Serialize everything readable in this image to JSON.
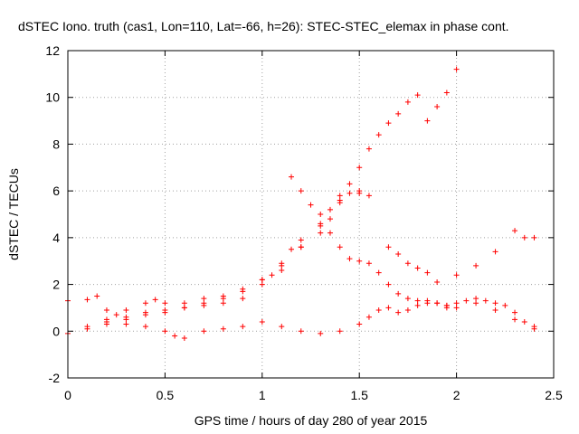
{
  "chart_data": {
    "type": "scatter",
    "title": "dSTEC Iono. truth (cas1, Lon=110, Lat=-66, h=26): STEC-STEC_elemax in phase cont.",
    "xlabel": "GPS time / hours of day 280 of year 2015",
    "ylabel": "dSTEC  / TECUs",
    "xlim": [
      0,
      2.5
    ],
    "ylim": [
      -2,
      12
    ],
    "xticks": [
      0,
      0.5,
      1,
      1.5,
      2,
      2.5
    ],
    "xtick_labels": [
      "0",
      "0.5",
      "1",
      "1.5",
      "2",
      "2.5"
    ],
    "yticks": [
      -2,
      0,
      2,
      4,
      6,
      8,
      10,
      12
    ],
    "ytick_labels": [
      "-2",
      "0",
      "2",
      "4",
      "6",
      "8",
      "10",
      "12"
    ],
    "grid": true,
    "marker": "+",
    "color": "#ff0000",
    "series": [
      {
        "x": [
          0,
          0.1,
          0.2,
          0.3,
          0.4,
          0.5,
          0.6,
          0.7,
          0.8,
          0.9,
          1.0,
          1.1,
          1.2,
          1.3,
          1.35,
          1.4,
          1.45,
          1.5,
          1.55,
          1.6,
          1.65,
          1.7,
          1.75,
          1.8,
          1.85,
          1.9,
          1.95,
          2.0
        ],
        "y": [
          -0.1,
          0.1,
          0.3,
          0.5,
          0.7,
          0.8,
          1.0,
          1.2,
          1.4,
          1.7,
          2.2,
          2.8,
          3.6,
          4.5,
          5.2,
          5.8,
          6.3,
          7.0,
          7.8,
          8.4,
          8.9,
          9.3,
          9.8,
          10.1,
          9.0,
          9.6,
          10.2,
          11.2
        ]
      },
      {
        "x": [
          0,
          0.1,
          0.15,
          0.2,
          0.25,
          0.3,
          0.4,
          0.5,
          0.6,
          0.7,
          0.8,
          0.9,
          1.0,
          1.1,
          1.2,
          1.3,
          1.4,
          1.5
        ],
        "y": [
          1.3,
          1.35,
          1.5,
          0.9,
          0.7,
          0.6,
          0.8,
          0.9,
          1.0,
          1.1,
          1.2,
          1.4,
          2.0,
          2.6,
          3.6,
          4.6,
          5.5,
          5.9
        ]
      },
      {
        "x": [
          0.1,
          0.2,
          0.3,
          0.4,
          0.45,
          0.5,
          0.6,
          0.7,
          0.8,
          0.9,
          1.0,
          1.05,
          1.1,
          1.15,
          1.2,
          1.3,
          1.35,
          1.4,
          1.45,
          1.5,
          1.55
        ],
        "y": [
          0.2,
          0.5,
          0.9,
          1.2,
          1.35,
          1.2,
          1.2,
          1.4,
          1.5,
          1.8,
          2.2,
          2.4,
          2.9,
          3.5,
          3.9,
          4.2,
          4.8,
          5.6,
          5.9,
          6.0,
          5.8
        ]
      },
      {
        "x": [
          0.2,
          0.3,
          0.4,
          0.5,
          0.55,
          0.6,
          0.7,
          0.8,
          0.9,
          1.0,
          1.1,
          1.2,
          1.3,
          1.4,
          1.5,
          1.55,
          1.6,
          1.65,
          1.7,
          1.75,
          1.8,
          1.85,
          1.9,
          1.95,
          2.0,
          2.05,
          2.1,
          2.15,
          2.2,
          2.25,
          2.3,
          2.35,
          2.4
        ],
        "y": [
          0.4,
          0.3,
          0.2,
          0.0,
          -0.2,
          -0.3,
          0.0,
          0.1,
          0.2,
          0.4,
          0.2,
          0.0,
          -0.1,
          0.0,
          0.3,
          0.6,
          0.9,
          1.0,
          0.8,
          0.9,
          1.1,
          1.3,
          1.2,
          1.1,
          1.2,
          1.3,
          1.4,
          1.3,
          1.2,
          1.1,
          0.8,
          0.4,
          0.1
        ]
      },
      {
        "x": [
          1.15,
          1.2,
          1.25,
          1.3,
          1.35,
          1.4,
          1.45,
          1.5,
          1.55,
          1.6,
          1.65,
          1.7,
          1.75,
          1.8,
          1.85,
          1.9,
          1.95,
          2.0,
          2.1,
          2.2,
          2.3,
          2.4
        ],
        "y": [
          6.6,
          6.0,
          5.4,
          5.0,
          4.2,
          3.6,
          3.1,
          3.0,
          2.9,
          2.5,
          2.0,
          1.6,
          1.4,
          1.3,
          1.2,
          1.2,
          1.1,
          1.0,
          1.2,
          0.9,
          0.5,
          0.2
        ]
      },
      {
        "x": [
          1.65,
          1.7,
          1.75,
          1.8,
          1.85,
          1.9,
          1.95,
          2.0,
          2.1,
          2.2,
          2.3,
          2.35,
          2.4
        ],
        "y": [
          3.6,
          3.3,
          2.9,
          2.7,
          2.5,
          2.1,
          1.0,
          2.4,
          2.8,
          3.4,
          4.3,
          4.0,
          4.0
        ]
      }
    ]
  }
}
